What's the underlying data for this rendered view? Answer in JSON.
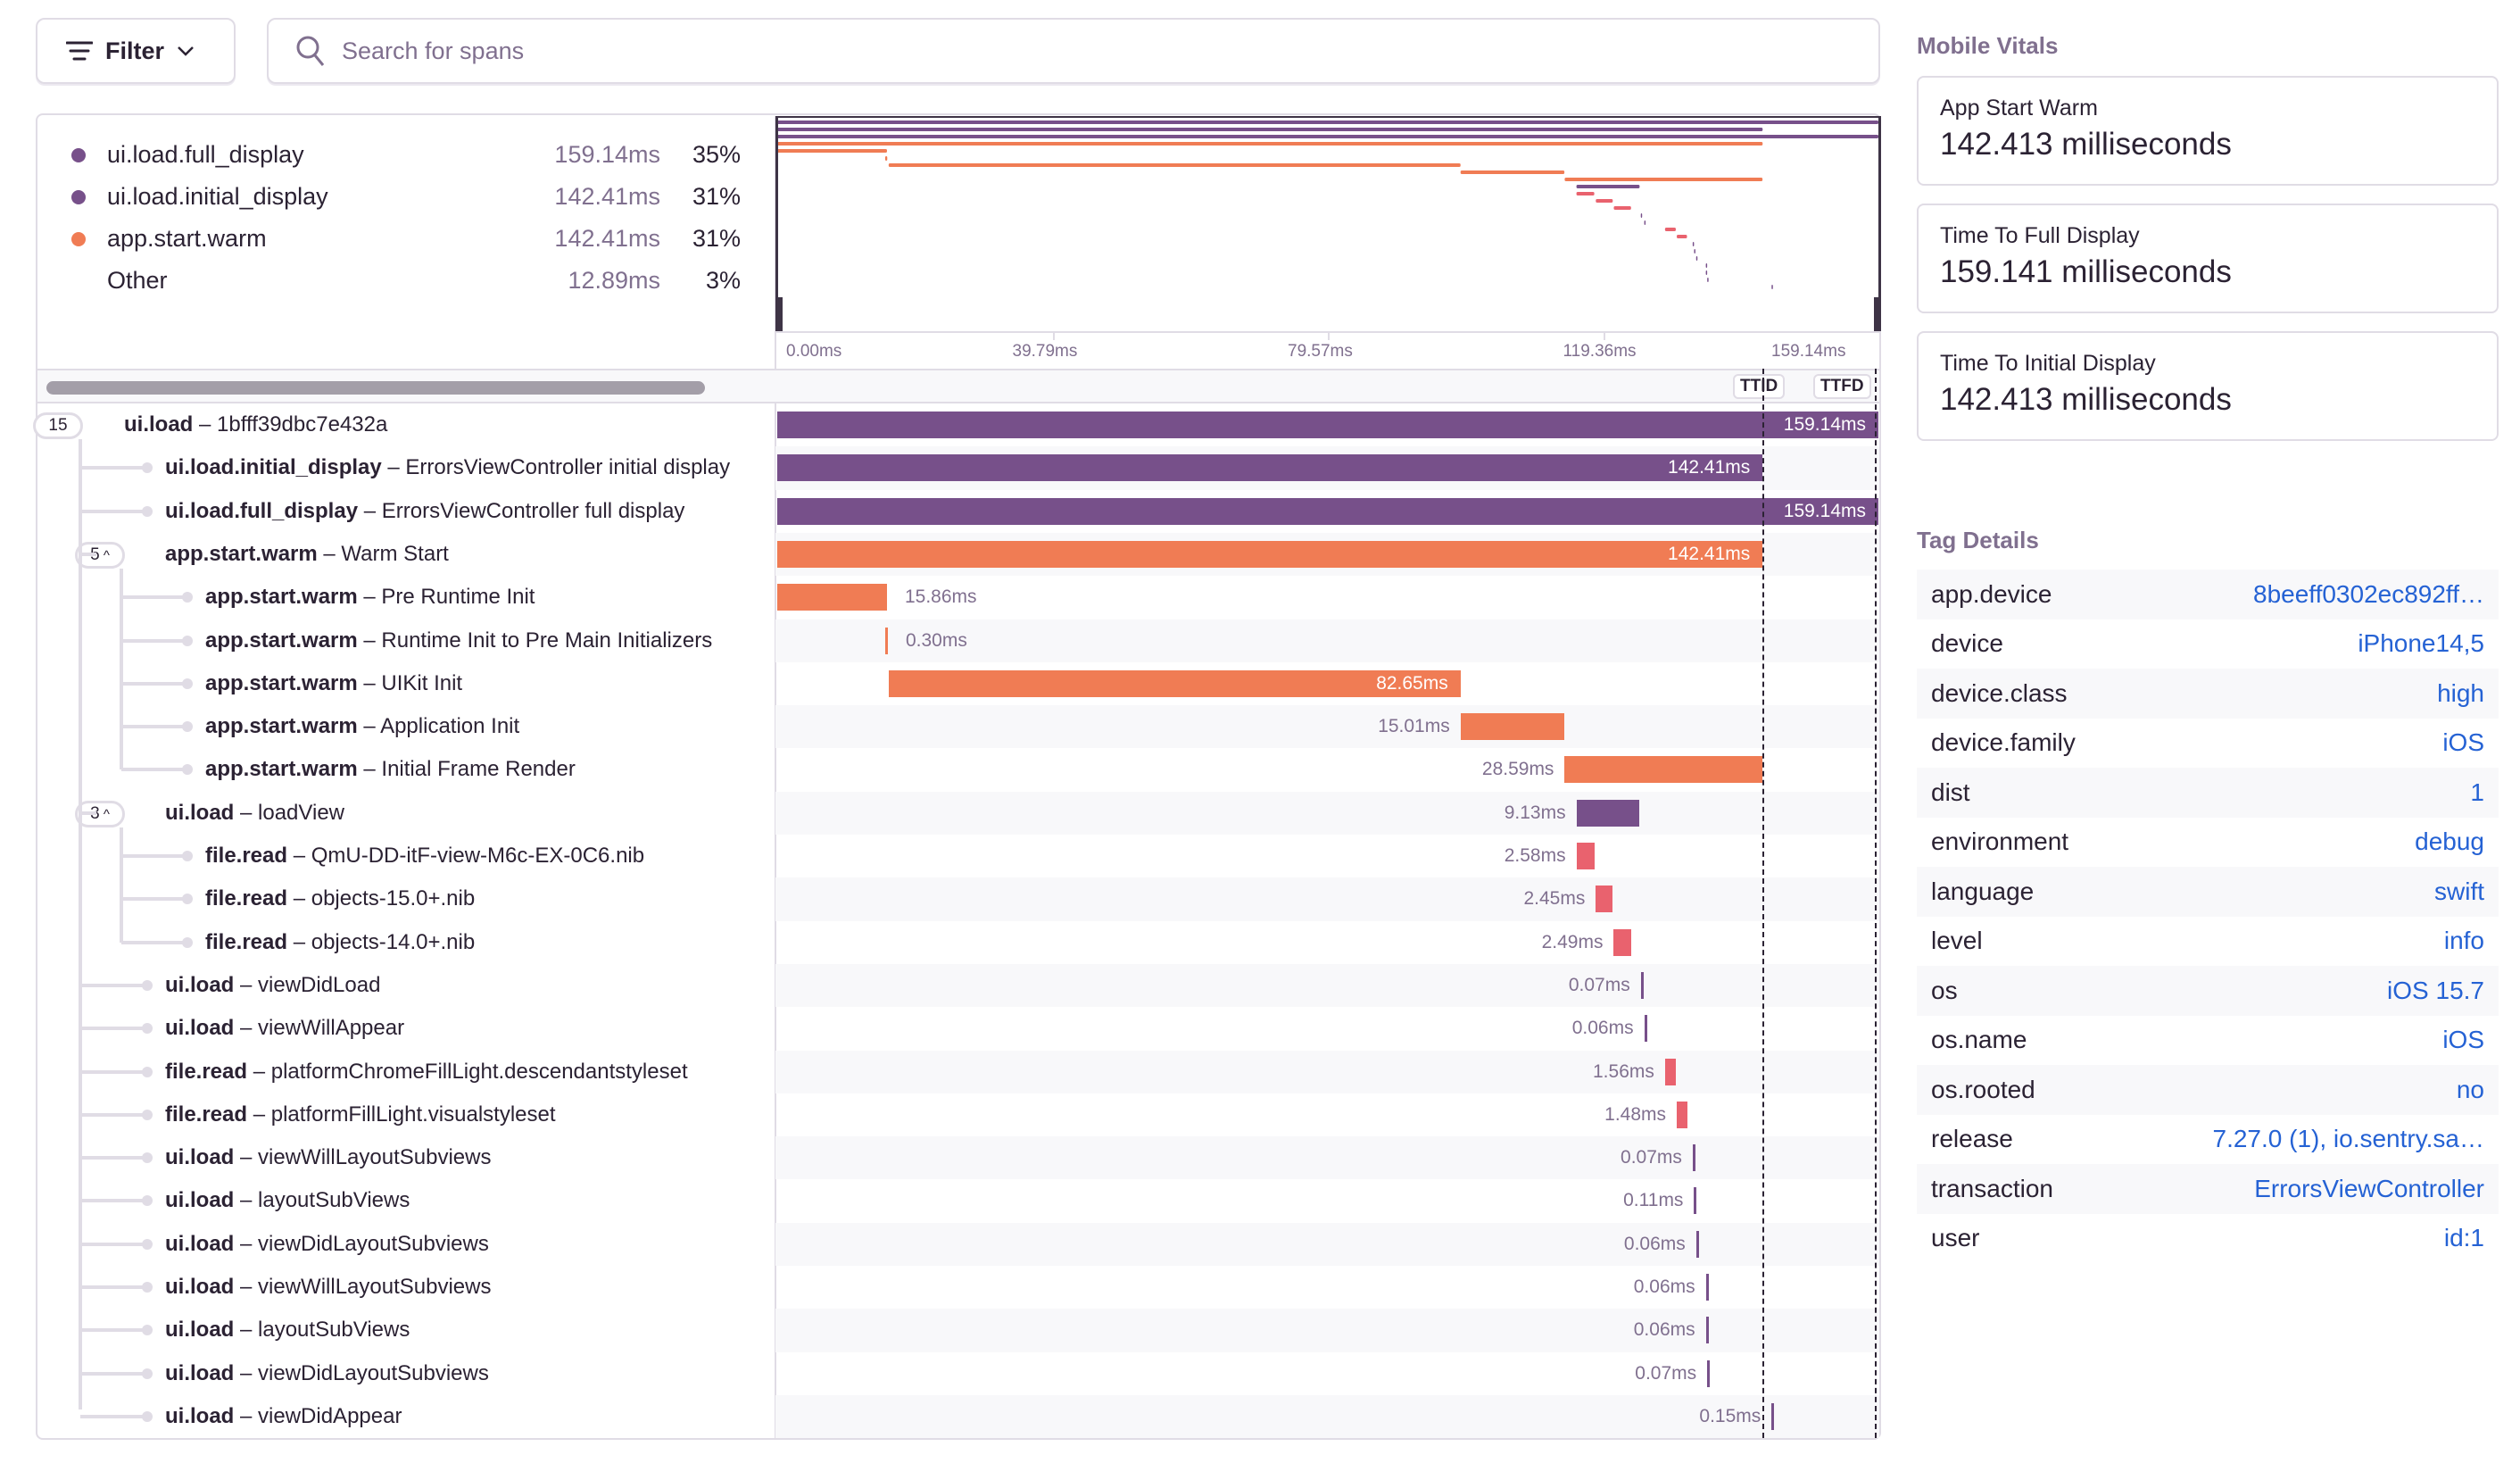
{
  "toolbar": {
    "filter_label": "Filter",
    "search_placeholder": "Search for spans"
  },
  "legend": [
    {
      "name": "ui.load.full_display",
      "duration": "159.14ms",
      "percent": "35%",
      "color": "#77508a"
    },
    {
      "name": "ui.load.initial_display",
      "duration": "142.41ms",
      "percent": "31%",
      "color": "#77508a"
    },
    {
      "name": "app.start.warm",
      "duration": "142.41ms",
      "percent": "31%",
      "color": "#f07c54"
    },
    {
      "name": "Other",
      "duration": "12.89ms",
      "percent": "3%",
      "color": ""
    }
  ],
  "axis": {
    "ticks": [
      "0.00ms",
      "39.79ms",
      "79.57ms",
      "119.36ms",
      "159.14ms"
    ],
    "total_ms": 159.14
  },
  "markers": {
    "ttid": "TTID",
    "ttfd": "TTFD",
    "ttid_ms": 142.41,
    "ttfd_ms": 159.14
  },
  "colors": {
    "ui": "#77508a",
    "app": "#f07c54",
    "file": "#e9626e"
  },
  "spans": [
    {
      "op": "ui.load",
      "desc": "1bfff39dbc7e432a",
      "depth": 0,
      "children": "15",
      "start": 0,
      "dur": 159.14,
      "label": "159.14ms",
      "kind": "ui"
    },
    {
      "op": "ui.load.initial_display",
      "desc": "ErrorsViewController initial display",
      "depth": 1,
      "start": 0,
      "dur": 142.41,
      "label": "142.41ms",
      "kind": "ui"
    },
    {
      "op": "ui.load.full_display",
      "desc": "ErrorsViewController full display",
      "depth": 1,
      "start": 0,
      "dur": 159.14,
      "label": "159.14ms",
      "kind": "ui"
    },
    {
      "op": "app.start.warm",
      "desc": "Warm Start",
      "depth": 1,
      "children": "5",
      "start": 0,
      "dur": 142.41,
      "label": "142.41ms",
      "kind": "app"
    },
    {
      "op": "app.start.warm",
      "desc": "Pre Runtime Init",
      "depth": 2,
      "start": 0,
      "dur": 15.86,
      "label": "15.86ms",
      "kind": "app"
    },
    {
      "op": "app.start.warm",
      "desc": "Runtime Init to Pre Main Initializers",
      "depth": 2,
      "start": 15.6,
      "dur": 0.3,
      "label": "0.30ms",
      "kind": "app"
    },
    {
      "op": "app.start.warm",
      "desc": "UIKit Init",
      "depth": 2,
      "start": 16.1,
      "dur": 82.65,
      "label": "82.65ms",
      "kind": "app"
    },
    {
      "op": "app.start.warm",
      "desc": "Application Init",
      "depth": 2,
      "start": 98.75,
      "dur": 15.01,
      "label": "15.01ms",
      "kind": "app"
    },
    {
      "op": "app.start.warm",
      "desc": "Initial Frame Render",
      "depth": 2,
      "start": 113.8,
      "dur": 28.59,
      "label": "28.59ms",
      "kind": "app"
    },
    {
      "op": "ui.load",
      "desc": "loadView",
      "depth": 1,
      "children": "3",
      "start": 115.5,
      "dur": 9.13,
      "label": "9.13ms",
      "kind": "ui"
    },
    {
      "op": "file.read",
      "desc": "QmU-DD-itF-view-M6c-EX-0C6.nib",
      "depth": 2,
      "start": 115.5,
      "dur": 2.58,
      "label": "2.58ms",
      "kind": "file"
    },
    {
      "op": "file.read",
      "desc": "objects-15.0+.nib",
      "depth": 2,
      "start": 118.3,
      "dur": 2.45,
      "label": "2.45ms",
      "kind": "file"
    },
    {
      "op": "file.read",
      "desc": "objects-14.0+.nib",
      "depth": 2,
      "start": 120.9,
      "dur": 2.49,
      "label": "2.49ms",
      "kind": "file"
    },
    {
      "op": "ui.load",
      "desc": "viewDidLoad",
      "depth": 1,
      "start": 124.8,
      "dur": 0.07,
      "label": "0.07ms",
      "kind": "ui"
    },
    {
      "op": "ui.load",
      "desc": "viewWillAppear",
      "depth": 1,
      "start": 125.3,
      "dur": 0.06,
      "label": "0.06ms",
      "kind": "ui"
    },
    {
      "op": "file.read",
      "desc": "platformChromeFillLight.descendantstyleset",
      "depth": 1,
      "start": 128.3,
      "dur": 1.56,
      "label": "1.56ms",
      "kind": "file"
    },
    {
      "op": "file.read",
      "desc": "platformFillLight.visualstyleset",
      "depth": 1,
      "start": 130.0,
      "dur": 1.48,
      "label": "1.48ms",
      "kind": "file"
    },
    {
      "op": "ui.load",
      "desc": "viewWillLayoutSubviews",
      "depth": 1,
      "start": 132.3,
      "dur": 0.07,
      "label": "0.07ms",
      "kind": "ui"
    },
    {
      "op": "ui.load",
      "desc": "layoutSubViews",
      "depth": 1,
      "start": 132.5,
      "dur": 0.11,
      "label": "0.11ms",
      "kind": "ui"
    },
    {
      "op": "ui.load",
      "desc": "viewDidLayoutSubviews",
      "depth": 1,
      "start": 132.8,
      "dur": 0.06,
      "label": "0.06ms",
      "kind": "ui"
    },
    {
      "op": "ui.load",
      "desc": "viewWillLayoutSubviews",
      "depth": 1,
      "start": 134.2,
      "dur": 0.06,
      "label": "0.06ms",
      "kind": "ui"
    },
    {
      "op": "ui.load",
      "desc": "layoutSubViews",
      "depth": 1,
      "start": 134.2,
      "dur": 0.06,
      "label": "0.06ms",
      "kind": "ui"
    },
    {
      "op": "ui.load",
      "desc": "viewDidLayoutSubviews",
      "depth": 1,
      "start": 134.4,
      "dur": 0.07,
      "label": "0.07ms",
      "kind": "ui"
    },
    {
      "op": "ui.load",
      "desc": "viewDidAppear",
      "depth": 1,
      "start": 143.7,
      "dur": 0.15,
      "label": "0.15ms",
      "kind": "ui"
    }
  ],
  "sidebar": {
    "vitals_title": "Mobile Vitals",
    "vitals": [
      {
        "title": "App Start Warm",
        "value": "142.413 milliseconds"
      },
      {
        "title": "Time To Full Display",
        "value": "159.141 milliseconds"
      },
      {
        "title": "Time To Initial Display",
        "value": "142.413 milliseconds"
      }
    ],
    "tags_title": "Tag Details",
    "tags": [
      {
        "key": "app.device",
        "value": "8beeff0302ec892ff…"
      },
      {
        "key": "device",
        "value": "iPhone14,5"
      },
      {
        "key": "device.class",
        "value": "high"
      },
      {
        "key": "device.family",
        "value": "iOS"
      },
      {
        "key": "dist",
        "value": "1"
      },
      {
        "key": "environment",
        "value": "debug"
      },
      {
        "key": "language",
        "value": "swift"
      },
      {
        "key": "level",
        "value": "info"
      },
      {
        "key": "os",
        "value": "iOS 15.7"
      },
      {
        "key": "os.name",
        "value": "iOS"
      },
      {
        "key": "os.rooted",
        "value": "no"
      },
      {
        "key": "release",
        "value": "7.27.0 (1), io.sentry.sa…"
      },
      {
        "key": "transaction",
        "value": "ErrorsViewController"
      },
      {
        "key": "user",
        "value": "id:1"
      }
    ]
  }
}
